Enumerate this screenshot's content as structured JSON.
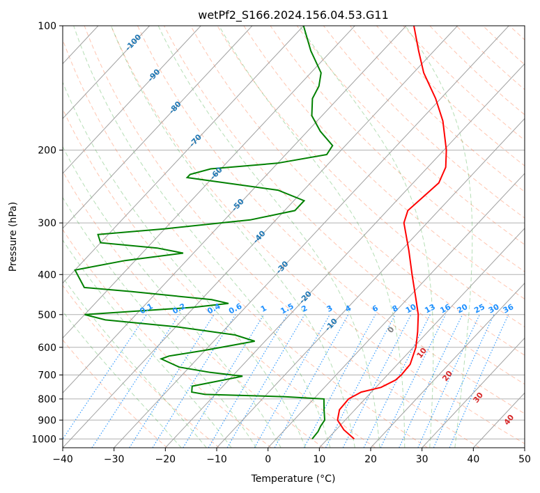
{
  "chart_data": {
    "type": "skew-t",
    "title": "wetPf2_S166.2024.156.04.53.G11",
    "xlabel": "Temperature (°C)",
    "ylabel": "Pressure (hPa)",
    "xlim": [
      -40,
      50
    ],
    "ylim_hpa": [
      1050,
      100
    ],
    "y_scale": "log",
    "grid": true,
    "x_ticks": [
      "−40",
      "−30",
      "−20",
      "−10",
      "0",
      "10",
      "20",
      "30",
      "40",
      "50"
    ],
    "y_ticks": [
      "100",
      "200",
      "300",
      "400",
      "500",
      "600",
      "700",
      "800",
      "900",
      "1000"
    ],
    "temperature_profile": {
      "color": "#ff0000",
      "points": [
        {
          "p": 1000,
          "t": 15.2
        },
        {
          "p": 950,
          "t": 11.5
        },
        {
          "p": 900,
          "t": 8.5
        },
        {
          "p": 850,
          "t": 7.0
        },
        {
          "p": 800,
          "t": 6.8
        },
        {
          "p": 770,
          "t": 8.0
        },
        {
          "p": 750,
          "t": 11.0
        },
        {
          "p": 720,
          "t": 12.5
        },
        {
          "p": 700,
          "t": 12.7
        },
        {
          "p": 660,
          "t": 12.5
        },
        {
          "p": 600,
          "t": 10.5
        },
        {
          "p": 550,
          "t": 8.0
        },
        {
          "p": 500,
          "t": 5.0
        },
        {
          "p": 450,
          "t": 1.0
        },
        {
          "p": 400,
          "t": -3.5
        },
        {
          "p": 350,
          "t": -8.5
        },
        {
          "p": 300,
          "t": -14.5
        },
        {
          "p": 280,
          "t": -16.0
        },
        {
          "p": 260,
          "t": -15.5
        },
        {
          "p": 240,
          "t": -15.0
        },
        {
          "p": 220,
          "t": -16.5
        },
        {
          "p": 200,
          "t": -19.5
        },
        {
          "p": 170,
          "t": -25.5
        },
        {
          "p": 150,
          "t": -31.0
        },
        {
          "p": 130,
          "t": -38.0
        },
        {
          "p": 115,
          "t": -43.0
        },
        {
          "p": 100,
          "t": -48.5
        }
      ]
    },
    "dewpoint_profile": {
      "color": "#008000",
      "points": [
        {
          "p": 1000,
          "t": 7.0
        },
        {
          "p": 960,
          "t": 6.8
        },
        {
          "p": 930,
          "t": 6.3
        },
        {
          "p": 900,
          "t": 6.0
        },
        {
          "p": 850,
          "t": 4.0
        },
        {
          "p": 800,
          "t": 2.0
        },
        {
          "p": 790,
          "t": -6.0
        },
        {
          "p": 780,
          "t": -22.0
        },
        {
          "p": 770,
          "t": -25.0
        },
        {
          "p": 745,
          "t": -26.0
        },
        {
          "p": 725,
          "t": -22.0
        },
        {
          "p": 705,
          "t": -18.0
        },
        {
          "p": 690,
          "t": -25.0
        },
        {
          "p": 670,
          "t": -32.0
        },
        {
          "p": 640,
          "t": -37.0
        },
        {
          "p": 630,
          "t": -36.0
        },
        {
          "p": 610,
          "t": -30.0
        },
        {
          "p": 580,
          "t": -22.0
        },
        {
          "p": 560,
          "t": -27.0
        },
        {
          "p": 535,
          "t": -40.0
        },
        {
          "p": 515,
          "t": -55.0
        },
        {
          "p": 500,
          "t": -60.0
        },
        {
          "p": 480,
          "t": -40.0
        },
        {
          "p": 470,
          "t": -34.0
        },
        {
          "p": 460,
          "t": -38.0
        },
        {
          "p": 440,
          "t": -55.0
        },
        {
          "p": 430,
          "t": -65.0
        },
        {
          "p": 390,
          "t": -70.0
        },
        {
          "p": 370,
          "t": -62.0
        },
        {
          "p": 355,
          "t": -52.0
        },
        {
          "p": 345,
          "t": -58.0
        },
        {
          "p": 335,
          "t": -70.0
        },
        {
          "p": 320,
          "t": -72.0
        },
        {
          "p": 310,
          "t": -60.0
        },
        {
          "p": 295,
          "t": -45.0
        },
        {
          "p": 280,
          "t": -38.0
        },
        {
          "p": 265,
          "t": -38.0
        },
        {
          "p": 250,
          "t": -45.0
        },
        {
          "p": 233,
          "t": -65.0
        },
        {
          "p": 229,
          "t": -65.0
        },
        {
          "p": 222,
          "t": -62.0
        },
        {
          "p": 215,
          "t": -50.0
        },
        {
          "p": 205,
          "t": -42.0
        },
        {
          "p": 195,
          "t": -42.5
        },
        {
          "p": 180,
          "t": -47.5
        },
        {
          "p": 165,
          "t": -52.0
        },
        {
          "p": 150,
          "t": -55.0
        },
        {
          "p": 140,
          "t": -56.0
        },
        {
          "p": 130,
          "t": -58.0
        },
        {
          "p": 115,
          "t": -64.0
        },
        {
          "p": 100,
          "t": -70.0
        }
      ]
    },
    "skewed_isotherms": {
      "color": "#a0a0a0",
      "values": [
        -140,
        -130,
        -120,
        -110,
        -100,
        -90,
        -80,
        -70,
        -60,
        -50,
        -40,
        -30,
        -20,
        -10,
        0,
        10,
        20,
        30,
        40,
        50
      ]
    },
    "isotherm_labels": {
      "color": "#1f77b4",
      "items": [
        {
          "t": -100,
          "p": 110,
          "label": "-100"
        },
        {
          "t": -90,
          "p": 132,
          "label": "-90"
        },
        {
          "t": -80,
          "p": 158,
          "label": "-80"
        },
        {
          "t": -70,
          "p": 190,
          "label": "-70"
        },
        {
          "t": -60,
          "p": 228,
          "label": "-60"
        },
        {
          "t": -50,
          "p": 272,
          "label": "-50"
        },
        {
          "t": -40,
          "p": 325,
          "label": "-40"
        },
        {
          "t": -30,
          "p": 385,
          "label": "-30"
        },
        {
          "t": -20,
          "p": 455,
          "label": "-20"
        },
        {
          "t": -10,
          "p": 530,
          "label": "-10"
        }
      ]
    },
    "moist_adiabat_labels": {
      "color": "#d62728",
      "items": [
        {
          "t": 24,
          "p": 545,
          "label": "0",
          "color": "#808080"
        },
        {
          "t": 30,
          "p": 620,
          "label": "10"
        },
        {
          "t": 35,
          "p": 705,
          "label": "20"
        },
        {
          "t": 41,
          "p": 795,
          "label": "30"
        },
        {
          "t": 47,
          "p": 900,
          "label": "40"
        }
      ]
    },
    "mixing_ratio": {
      "color": "#1e90ff",
      "values": [
        0.1,
        0.2,
        0.4,
        0.6,
        1,
        1.5,
        2,
        3,
        4,
        6,
        8,
        10,
        13,
        16,
        20,
        25,
        30,
        36
      ],
      "labels": [
        "0.1",
        "0.2",
        "0.4",
        "0.6",
        "1",
        "1.5",
        "2",
        "3",
        "4",
        "6",
        "8",
        "10",
        "13",
        "16",
        "20",
        "25",
        "30",
        "36"
      ],
      "label_pressure": 500
    },
    "dry_adiabats": {
      "color": "#ff7f50",
      "theta_k": [
        250,
        260,
        270,
        280,
        290,
        300,
        310,
        320,
        330,
        340,
        350,
        360,
        370,
        380,
        390,
        400,
        410,
        420,
        430,
        440,
        450,
        460,
        470,
        480,
        490,
        500,
        510,
        520,
        540,
        560
      ]
    },
    "moist_adiabats": {
      "color": "#2ca02c",
      "t_start_c": [
        -20,
        -15,
        -10,
        -5,
        0,
        5,
        10,
        15,
        20,
        25,
        30,
        35
      ]
    }
  }
}
